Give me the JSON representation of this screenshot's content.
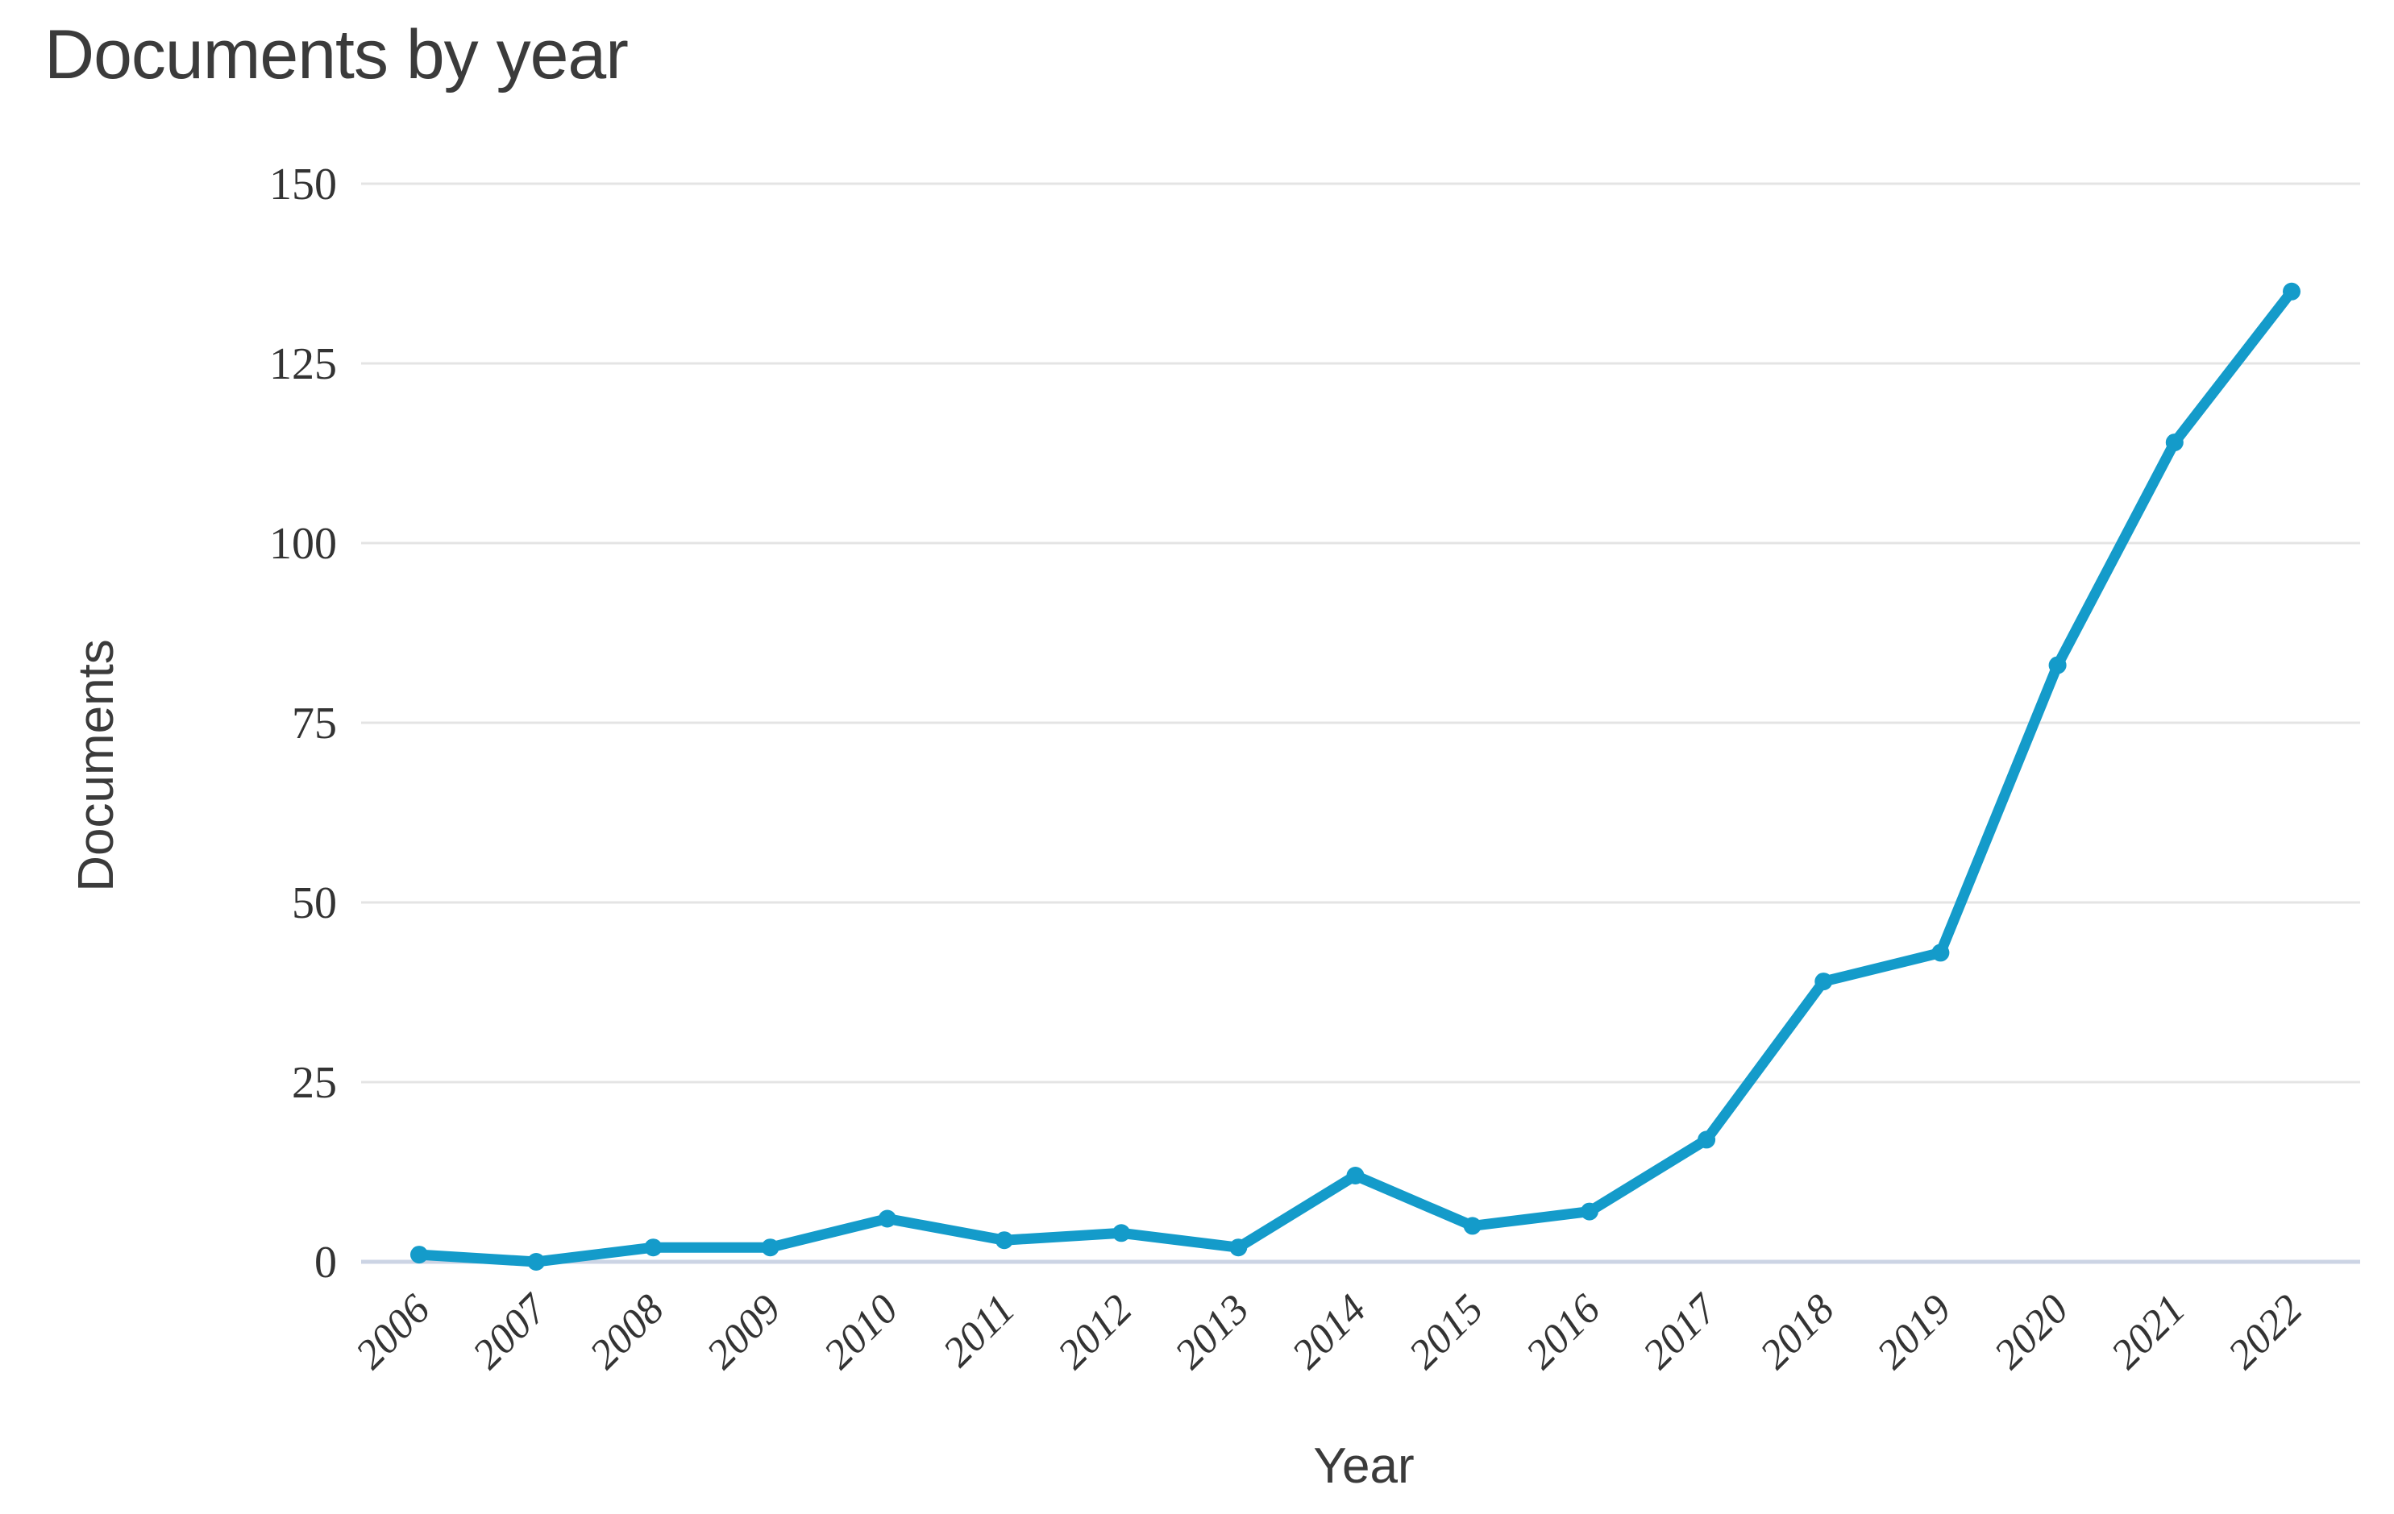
{
  "title": "Documents by year",
  "y_axis": {
    "label": "Documents",
    "tick_labels": [
      "0",
      "25",
      "50",
      "75",
      "100",
      "125",
      "150"
    ]
  },
  "x_axis": {
    "label": "Year",
    "tick_labels": [
      "2006",
      "2007",
      "2008",
      "2009",
      "2010",
      "2011",
      "2012",
      "2013",
      "2014",
      "2015",
      "2016",
      "2017",
      "2018",
      "2019",
      "2020",
      "2021",
      "2022"
    ]
  },
  "chart_data": {
    "type": "line",
    "title": "Documents by year",
    "xlabel": "Year",
    "ylabel": "Documents",
    "x": [
      "2006",
      "2007",
      "2008",
      "2009",
      "2010",
      "2011",
      "2012",
      "2013",
      "2014",
      "2015",
      "2016",
      "2017",
      "2018",
      "2019",
      "2020",
      "2021",
      "2022"
    ],
    "series": [
      {
        "name": "Documents",
        "values": [
          1,
          0,
          2,
          2,
          6,
          3,
          4,
          2,
          12,
          5,
          7,
          17,
          39,
          43,
          83,
          114,
          135
        ]
      }
    ],
    "ylim": [
      0,
      150
    ],
    "y_ticks": [
      0,
      25,
      50,
      75,
      100,
      125,
      150
    ],
    "grid": "horizontal-only",
    "legend": "none",
    "marker": "circle"
  },
  "colors": {
    "line": "#149bca",
    "gridline": "#e4e4e4",
    "axis_line": "#ccd4e4",
    "title_text": "#3b3b3b",
    "tick_text": "#333333"
  }
}
